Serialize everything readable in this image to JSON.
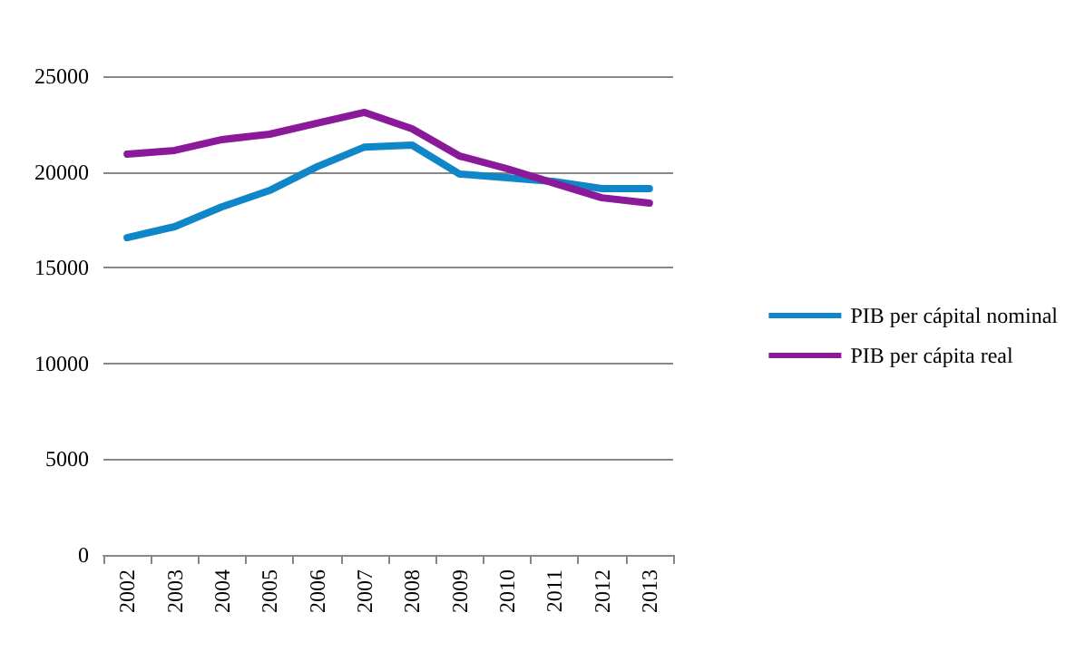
{
  "chart_data": {
    "type": "line",
    "categories": [
      "2002",
      "2003",
      "2004",
      "2005",
      "2006",
      "2007",
      "2008",
      "2009",
      "2010",
      "2011",
      "2012",
      "2013"
    ],
    "series": [
      {
        "name": "PIB per cápital nominal",
        "color": "#0f86c8",
        "values": [
          16570,
          17140,
          18180,
          19030,
          20270,
          21300,
          21400,
          19890,
          19700,
          19500,
          19130,
          19130
        ]
      },
      {
        "name": "PIB per cápita real",
        "color": "#8b1a9b",
        "values": [
          20930,
          21120,
          21690,
          21970,
          22540,
          23110,
          22250,
          20830,
          20170,
          19410,
          18650,
          18370
        ]
      }
    ],
    "ylim": [
      0,
      25000
    ],
    "yticks": [
      0,
      5000,
      10000,
      15000,
      20000,
      25000
    ],
    "grid": "y",
    "legend": "right",
    "marker": "none",
    "line_style": "solid"
  }
}
